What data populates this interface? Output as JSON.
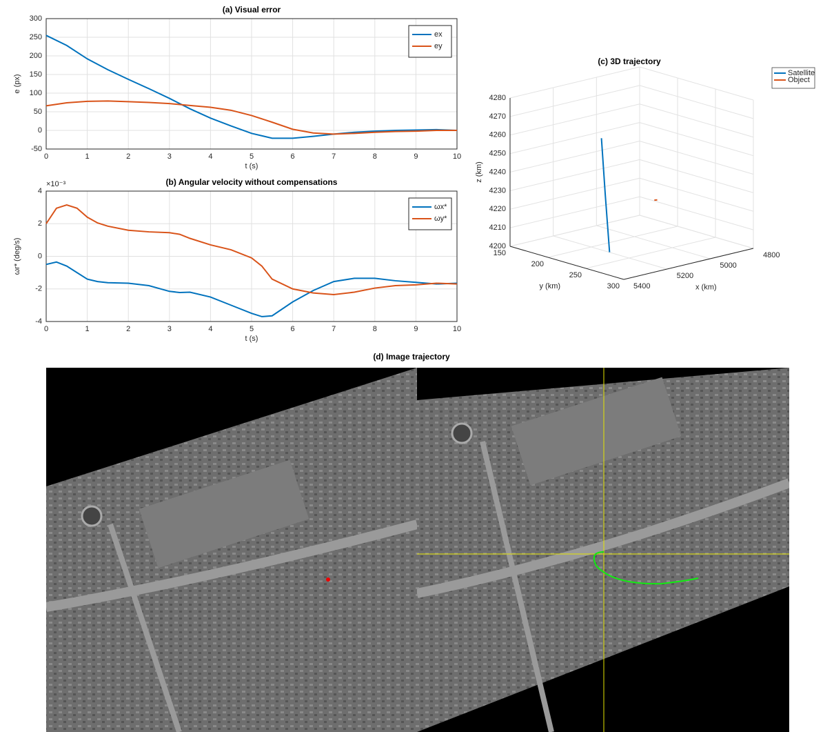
{
  "chart_data": [
    {
      "type": "line",
      "title": "(a) Visual error",
      "xlabel": "t (s)",
      "ylabel": "e (px)",
      "x": [
        0,
        0.5,
        1,
        1.5,
        2,
        2.5,
        3,
        3.5,
        4,
        4.5,
        5,
        5.5,
        6,
        6.5,
        7,
        7.5,
        8,
        8.5,
        9,
        9.5,
        10
      ],
      "series": [
        {
          "name": "ex",
          "color": "#0072bd",
          "values": [
            255,
            228,
            192,
            163,
            137,
            112,
            86,
            58,
            33,
            12,
            -8,
            -21,
            -21,
            -16,
            -10,
            -5,
            -2,
            0,
            1,
            2,
            0
          ]
        },
        {
          "name": "ey",
          "color": "#d95319",
          "values": [
            66,
            74,
            78,
            79,
            77,
            75,
            72,
            67,
            62,
            54,
            40,
            22,
            3,
            -7,
            -10,
            -8,
            -5,
            -3,
            -2,
            0,
            0
          ]
        }
      ],
      "xlim": [
        0,
        10
      ],
      "ylim": [
        -50,
        300
      ],
      "xticks": [
        0,
        1,
        2,
        3,
        4,
        5,
        6,
        7,
        8,
        9,
        10
      ],
      "yticks": [
        -50,
        0,
        50,
        100,
        150,
        200,
        250,
        300
      ],
      "grid": true,
      "legend": "upper right"
    },
    {
      "type": "line",
      "title": "(b) Angular velocity without compensations",
      "xlabel": "t (s)",
      "ylabel": "ωr* (deg/s)",
      "y_multiplier": "×10⁻³",
      "x": [
        0,
        0.25,
        0.5,
        0.75,
        1,
        1.25,
        1.5,
        2,
        2.5,
        3,
        3.25,
        3.5,
        4,
        4.5,
        5,
        5.25,
        5.5,
        6,
        6.5,
        7,
        7.5,
        8,
        8.5,
        9,
        9.5,
        10
      ],
      "series": [
        {
          "name": "ωx*",
          "color": "#0072bd",
          "values": [
            -0.5,
            -0.35,
            -0.6,
            -1.0,
            -1.4,
            -1.55,
            -1.62,
            -1.65,
            -1.8,
            -2.15,
            -2.22,
            -2.2,
            -2.5,
            -3.0,
            -3.5,
            -3.7,
            -3.65,
            -2.8,
            -2.1,
            -1.55,
            -1.35,
            -1.35,
            -1.5,
            -1.6,
            -1.7,
            -1.65
          ]
        },
        {
          "name": "ωy*",
          "color": "#d95319",
          "values": [
            2.0,
            2.95,
            3.15,
            2.95,
            2.4,
            2.05,
            1.85,
            1.6,
            1.5,
            1.45,
            1.35,
            1.1,
            0.7,
            0.4,
            -0.1,
            -0.6,
            -1.4,
            -2.0,
            -2.25,
            -2.35,
            -2.2,
            -1.95,
            -1.8,
            -1.75,
            -1.65,
            -1.7
          ]
        }
      ],
      "xlim": [
        0,
        10
      ],
      "ylim": [
        -4,
        4
      ],
      "xticks": [
        0,
        1,
        2,
        3,
        4,
        5,
        6,
        7,
        8,
        9,
        10
      ],
      "yticks": [
        -4,
        -2,
        0,
        2,
        4
      ],
      "grid": true,
      "legend": "upper right"
    },
    {
      "type": "line3d",
      "title": "(c) 3D trajectory",
      "xlabel": "x (km)",
      "ylabel": "y (km)",
      "zlabel": "z (km)",
      "series": [
        {
          "name": "Satellite",
          "color": "#0072bd",
          "x": [
            5163,
            5156,
            5150
          ],
          "y": [
            203,
            206,
            210
          ],
          "z": [
            4258,
            4228,
            4197
          ]
        },
        {
          "name": "Object",
          "color": "#d95319",
          "x": [
            4890,
            4880
          ],
          "y": [
            195,
            196
          ],
          "z": [
            4216,
            4216
          ]
        }
      ],
      "xlim": [
        4800,
        5400
      ],
      "ylim": [
        150,
        300
      ],
      "zlim": [
        4200,
        4280
      ],
      "xticks": [
        4800,
        5000,
        5200,
        5400
      ],
      "yticks": [
        150,
        200,
        250,
        300
      ],
      "zticks": [
        4200,
        4210,
        4220,
        4230,
        4240,
        4250,
        4260,
        4270,
        4280
      ],
      "grid": true,
      "legend": "upper right"
    },
    {
      "type": "image",
      "title": "(d) Image trajectory"
    }
  ]
}
